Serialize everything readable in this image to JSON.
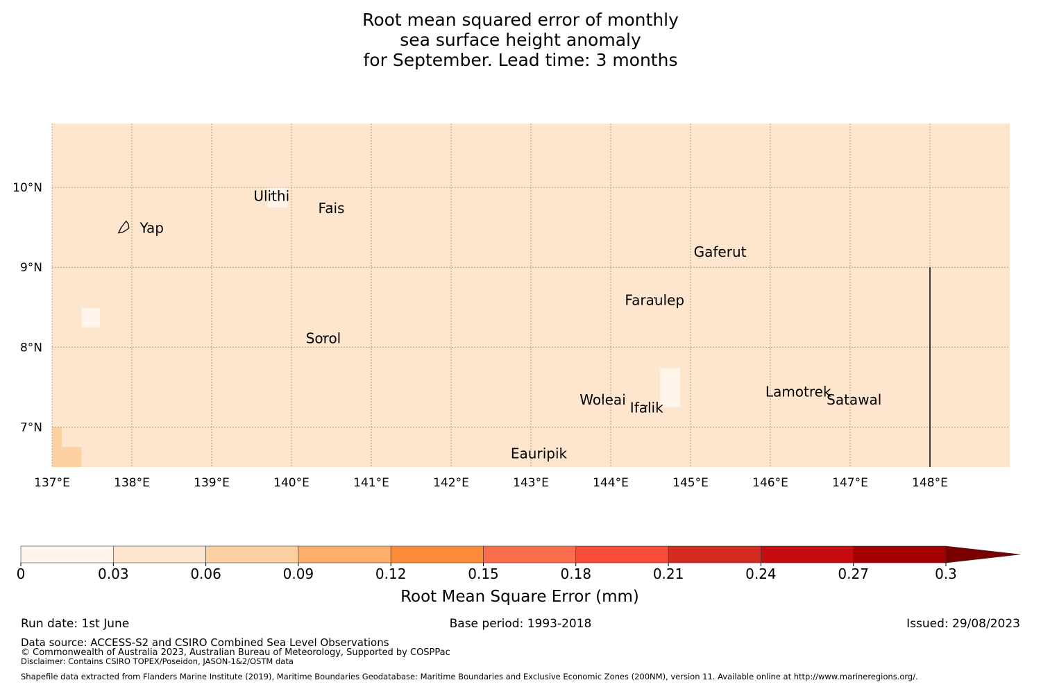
{
  "title": {
    "line1": "Root mean squared error of monthly",
    "line2": "sea surface height anomaly",
    "line3": "for September. Lead time: 3 months"
  },
  "map": {
    "lon_range": [
      137.0,
      149.0
    ],
    "lat_range": [
      6.5,
      10.8
    ],
    "lon_ticks": [
      {
        "value": 137,
        "label": "137°E"
      },
      {
        "value": 138,
        "label": "138°E"
      },
      {
        "value": 139,
        "label": "139°E"
      },
      {
        "value": 140,
        "label": "140°E"
      },
      {
        "value": 141,
        "label": "141°E"
      },
      {
        "value": 142,
        "label": "142°E"
      },
      {
        "value": 143,
        "label": "143°E"
      },
      {
        "value": 144,
        "label": "144°E"
      },
      {
        "value": 145,
        "label": "145°E"
      },
      {
        "value": 146,
        "label": "146°E"
      },
      {
        "value": 147,
        "label": "147°E"
      },
      {
        "value": 148,
        "label": "148°E"
      }
    ],
    "lat_ticks": [
      {
        "value": 10,
        "label": "10°N"
      },
      {
        "value": 9,
        "label": "9°N"
      },
      {
        "value": 8,
        "label": "8°N"
      },
      {
        "value": 7,
        "label": "7°N"
      }
    ],
    "grid": true,
    "background_value": 0.04,
    "cells": [
      {
        "lon": [
          139.7,
          139.95
        ],
        "lat": [
          9.75,
          10.0
        ],
        "value": 0.02
      },
      {
        "lon": [
          137.37,
          137.6
        ],
        "lat": [
          8.25,
          8.49
        ],
        "value": 0.02
      },
      {
        "lon": [
          144.62,
          144.87
        ],
        "lat": [
          7.25,
          7.74
        ],
        "value": 0.02
      },
      {
        "lon": [
          137.0,
          137.12
        ],
        "lat": [
          6.5,
          7.0
        ],
        "value": 0.07
      },
      {
        "lon": [
          137.12,
          137.37
        ],
        "lat": [
          6.5,
          6.75
        ],
        "value": 0.07
      }
    ],
    "islands": [
      {
        "name": "Yap",
        "lon": 138.25,
        "lat": 9.5
      },
      {
        "name": "Ulithi",
        "lon": 139.75,
        "lat": 9.9
      },
      {
        "name": "Fais",
        "lon": 140.5,
        "lat": 9.75
      },
      {
        "name": "Gaferut",
        "lon": 145.37,
        "lat": 9.2
      },
      {
        "name": "Faraulep",
        "lon": 144.55,
        "lat": 8.6
      },
      {
        "name": "Sorol",
        "lon": 140.4,
        "lat": 8.12
      },
      {
        "name": "Woleai",
        "lon": 143.9,
        "lat": 7.35
      },
      {
        "name": "Ifalik",
        "lon": 144.45,
        "lat": 7.25
      },
      {
        "name": "Lamotrek",
        "lon": 146.35,
        "lat": 7.45
      },
      {
        "name": "Satawal",
        "lon": 147.05,
        "lat": 7.35
      },
      {
        "name": "Eauripik",
        "lon": 143.1,
        "lat": 6.68
      }
    ],
    "boundary_line": {
      "lon": 148.0,
      "lat": [
        6.5,
        9.0
      ]
    }
  },
  "colorbar": {
    "boundaries": [
      0,
      0.03,
      0.06,
      0.09,
      0.12,
      0.15,
      0.18,
      0.21,
      0.24,
      0.27,
      0.3
    ],
    "tick_labels": [
      "0",
      "0.03",
      "0.06",
      "0.09",
      "0.12",
      "0.15",
      "0.18",
      "0.21",
      "0.24",
      "0.27",
      "0.3"
    ],
    "colors": [
      "#fff5eb",
      "#fee6ce",
      "#fdd0a2",
      "#fdae6b",
      "#fd8d3c",
      "#fc6d4e",
      "#fb4c3a",
      "#d42c21",
      "#c70c10",
      "#a50000"
    ],
    "extend_color": "#7a0000",
    "label": "Root Mean Square Error (mm)"
  },
  "footer": {
    "run_date": "Run date: 1st June",
    "base_period": "Base period: 1993-2018",
    "issued": "Issued: 29/08/2023",
    "data_source": "Data source: ACCESS-S2 and CSIRO Combined Sea Level Observations",
    "copyright": "© Commonwealth of Australia 2023, Australian Bureau of Meteorology, Supported by COSPPac",
    "disclaimer": "Disclaimer: Contains CSIRO TOPEX/Poseidon, JASON-1&2/OSTM data",
    "shapefile": "Shapefile data extracted from Flanders Marine Institute (2019), Maritime Boundaries Geodatabase: Maritime Boundaries and Exclusive Economic Zones (200NM), version 11. Available online at http://www.marineregions.org/."
  }
}
